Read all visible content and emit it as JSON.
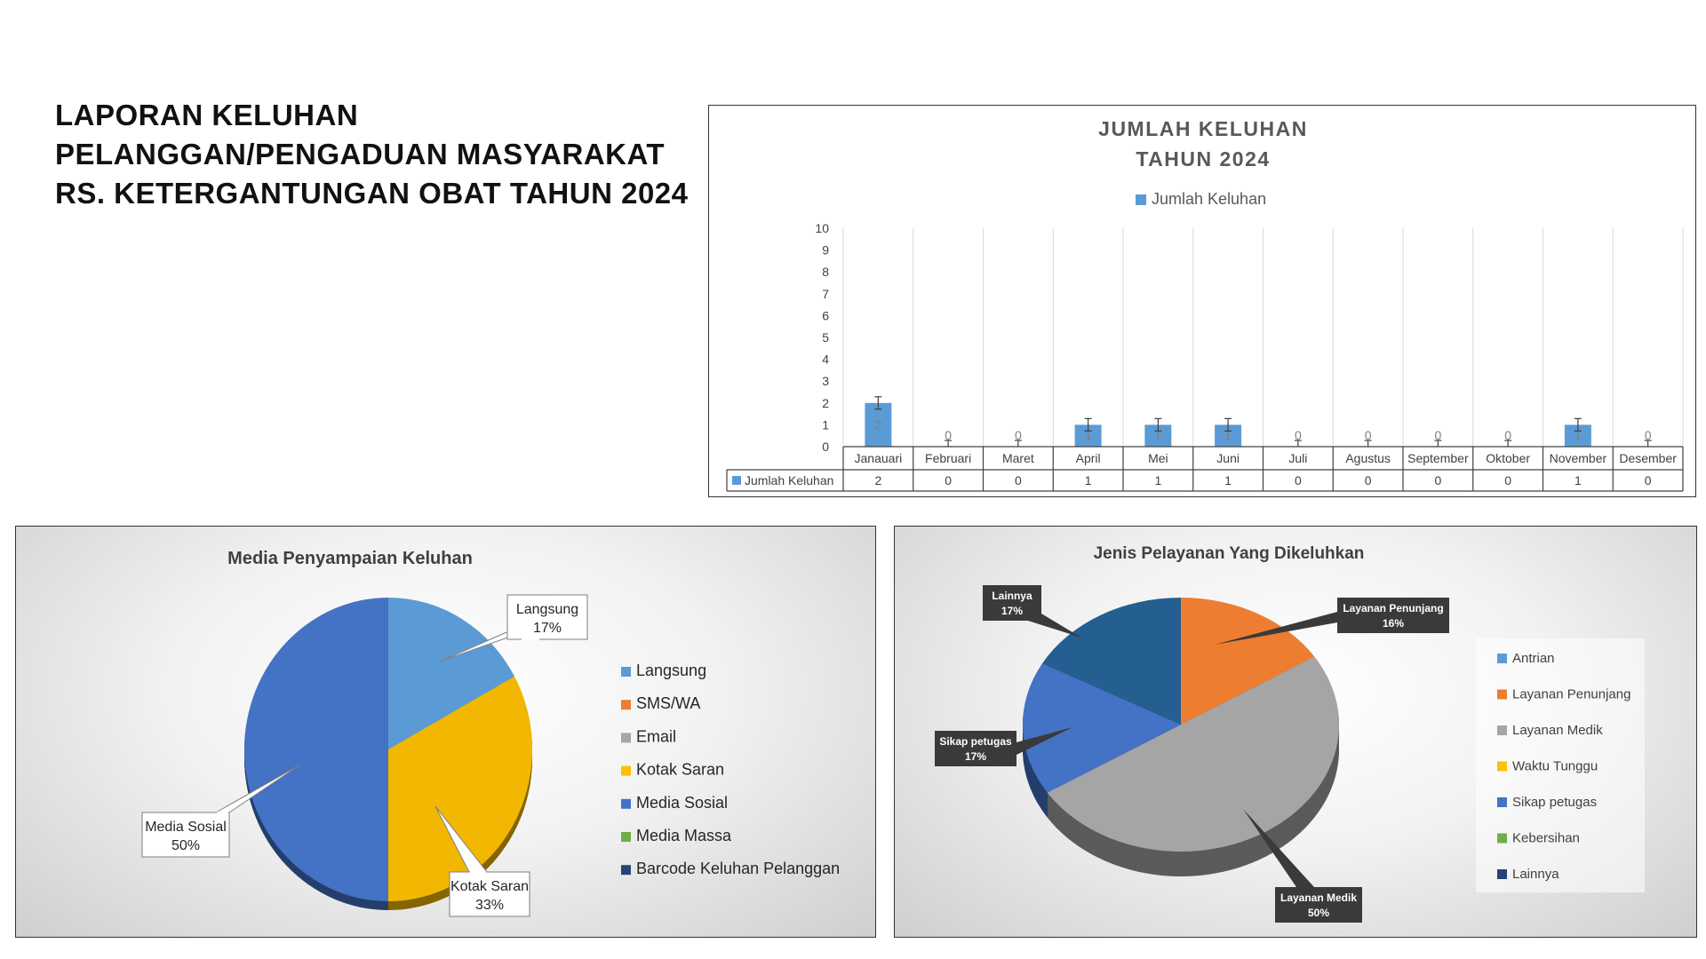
{
  "page": {
    "title_lines": [
      "LAPORAN KELUHAN",
      "PELANGGAN/PENGADUAN MASYARAKAT",
      "RS. KETERGANTUNGAN OBAT TAHUN 2024"
    ]
  },
  "chart_data": [
    {
      "type": "bar",
      "title": "JUMLAH KELUHAN",
      "subtitle": "TAHUN 2024",
      "categories": [
        "Janauari",
        "Februari",
        "Maret",
        "April",
        "Mei",
        "Juni",
        "Juli",
        "Agustus",
        "September",
        "Oktober",
        "November",
        "Desember"
      ],
      "series": [
        {
          "name": "Jumlah Keluhan",
          "values": [
            2,
            0,
            0,
            1,
            1,
            1,
            0,
            0,
            0,
            0,
            1,
            0
          ],
          "color": "#5b9bd5"
        }
      ],
      "yticks": [
        "0",
        "1",
        "2",
        "3",
        "4",
        "5",
        "6",
        "7",
        "8",
        "9",
        "10"
      ],
      "ylim": [
        0,
        10
      ],
      "legend": "top",
      "data_table": true,
      "error_bars": true
    },
    {
      "type": "pie",
      "title": "Media Penyampaian Keluhan",
      "slices": [
        {
          "label": "Langsung",
          "value": 17,
          "display": "17%",
          "color": "#5b9bd5"
        },
        {
          "label": "Kotak Saran",
          "value": 33,
          "display": "33%",
          "color": "#f2b701"
        },
        {
          "label": "Media Sosial",
          "value": 50,
          "display": "50%",
          "color": "#4472c4"
        }
      ],
      "legend": [
        {
          "label": "Langsung",
          "color": "#5b9bd5"
        },
        {
          "label": "SMS/WA",
          "color": "#ed7d31"
        },
        {
          "label": "Email",
          "color": "#a5a5a5"
        },
        {
          "label": "Kotak Saran",
          "color": "#ffc000"
        },
        {
          "label": "Media Sosial",
          "color": "#4472c4"
        },
        {
          "label": "Media Massa",
          "color": "#70ad47"
        },
        {
          "label": "Barcode Keluhan Pelanggan",
          "color": "#264478"
        }
      ],
      "legend_position": "right"
    },
    {
      "type": "pie",
      "title": "Jenis Pelayanan Yang Dikeluhkan",
      "slices": [
        {
          "label": "Layanan Penunjang",
          "value": 16,
          "display": "16%",
          "color": "#ed7d31"
        },
        {
          "label": "Layanan Medik",
          "value": 50,
          "display": "50%",
          "color": "#a5a5a5"
        },
        {
          "label": "Sikap petugas",
          "value": 17,
          "display": "17%",
          "color": "#4472c4"
        },
        {
          "label": "Lainnya",
          "value": 17,
          "display": "17%",
          "color": "#255e91"
        }
      ],
      "legend": [
        {
          "label": "Antrian",
          "color": "#5b9bd5"
        },
        {
          "label": "Layanan Penunjang",
          "color": "#ed7d31"
        },
        {
          "label": "Layanan Medik",
          "color": "#a5a5a5"
        },
        {
          "label": "Waktu Tunggu",
          "color": "#ffc000"
        },
        {
          "label": "Sikap petugas",
          "color": "#4472c4"
        },
        {
          "label": "Kebersihan",
          "color": "#70ad47"
        },
        {
          "label": "Lainnya",
          "color": "#264478"
        }
      ],
      "legend_position": "right"
    }
  ]
}
